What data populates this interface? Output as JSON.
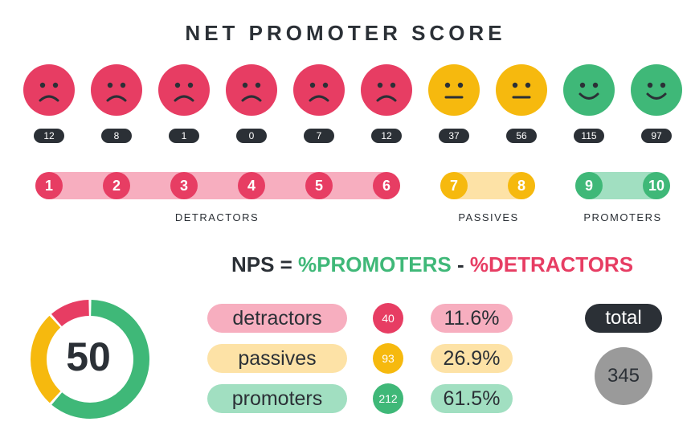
{
  "colors": {
    "detractor": "#e73d63",
    "detractor_light": "#f7aebf",
    "passive": "#f6b90e",
    "passive_light": "#fde2a6",
    "promoter": "#3fb878",
    "promoter_light": "#a1dfc1",
    "dark": "#2b3036",
    "total_gray": "#9a9a9a"
  },
  "title": "NET PROMOTER SCORE",
  "faces": [
    {
      "icon": "sad-face-icon",
      "category": "detractor"
    },
    {
      "icon": "sad-face-icon",
      "category": "detractor"
    },
    {
      "icon": "sad-face-icon",
      "category": "detractor"
    },
    {
      "icon": "sad-face-icon",
      "category": "detractor"
    },
    {
      "icon": "sad-face-icon",
      "category": "detractor"
    },
    {
      "icon": "sad-face-icon",
      "category": "detractor"
    },
    {
      "icon": "neutral-face-icon",
      "category": "passive"
    },
    {
      "icon": "neutral-face-icon",
      "category": "passive"
    },
    {
      "icon": "smile-face-icon",
      "category": "promoter"
    },
    {
      "icon": "smile-face-icon",
      "category": "promoter"
    }
  ],
  "groups": {
    "detractors": "DETRACTORS",
    "passives": "PASSIVES",
    "promoters": "PROMOTERS"
  },
  "formula": {
    "prefix": "NPS = ",
    "promoters": "%PROMOTERS",
    "minus": " - ",
    "detractors": "%DETRACTORS"
  },
  "summary": {
    "rows": [
      {
        "label": "detractors",
        "count": "40",
        "percent": "11.6%"
      },
      {
        "label": "passives",
        "count": "93",
        "percent": "26.9%"
      },
      {
        "label": "promoters",
        "count": "212",
        "percent": "61.5%"
      }
    ],
    "total_label": "total",
    "total_value": "345"
  },
  "chart_data": [
    {
      "type": "bar",
      "categories": [
        "1",
        "2",
        "3",
        "4",
        "5",
        "6",
        "7",
        "8",
        "9",
        "10"
      ],
      "values": [
        12,
        8,
        1,
        0,
        7,
        12,
        37,
        56,
        115,
        97
      ]
    },
    {
      "type": "pie",
      "title": "50",
      "categories": [
        "promoters",
        "passives",
        "detractors"
      ],
      "values": [
        61.5,
        26.9,
        11.6
      ]
    }
  ]
}
